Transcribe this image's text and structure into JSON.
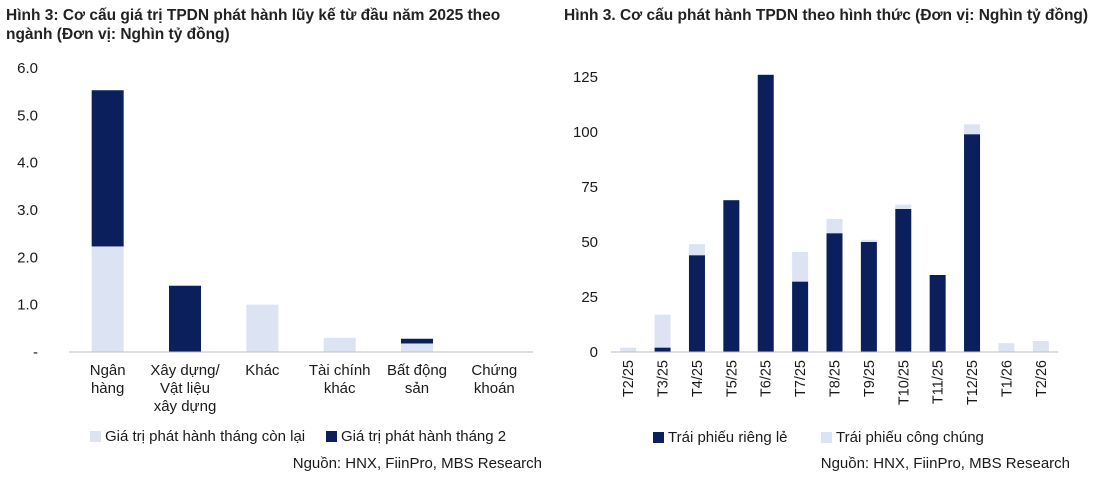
{
  "chart_data": [
    {
      "type": "bar",
      "stacked": true,
      "title": "Hình 3: Cơ cấu giá trị TPDN phát hành lũy kế từ đầu năm 2025 theo ngành (Đơn vị: Nghìn tỷ đồng)",
      "categories": [
        [
          "Ngân",
          "hàng"
        ],
        [
          "Xây dựng/",
          "Vật liệu",
          "xây dựng"
        ],
        [
          "Khác"
        ],
        [
          "Tài chính",
          "khác"
        ],
        [
          "Bất động",
          "sản"
        ],
        [
          "Chứng",
          "khoán"
        ]
      ],
      "series": [
        {
          "name": "Giá trị phát hành tháng còn lại",
          "color": "#dce3f3",
          "values": [
            2.23,
            0,
            1.0,
            0.3,
            0.18,
            0
          ]
        },
        {
          "name": "Giá trị phát hành tháng 2",
          "color": "#0b1f5c",
          "values": [
            3.3,
            1.4,
            0,
            0,
            0.1,
            0
          ]
        }
      ],
      "ylim": [
        0,
        6
      ],
      "yticks": [
        {
          "value": 0,
          "label": "-"
        },
        {
          "value": 1,
          "label": "1.0"
        },
        {
          "value": 2,
          "label": "2.0"
        },
        {
          "value": 3,
          "label": "3.0"
        },
        {
          "value": 4,
          "label": "4.0"
        },
        {
          "value": 5,
          "label": "5.0"
        },
        {
          "value": 6,
          "label": "6.0"
        }
      ],
      "legend": "bottom",
      "source": "Nguồn: HNX, FiinPro, MBS Research"
    },
    {
      "type": "bar",
      "stacked": true,
      "title": "Hình 3. Cơ cấu phát hành TPDN theo hình thức (Đơn vị: Nghìn tỷ đồng)",
      "categories": [
        "T2/25",
        "T3/25",
        "T4/25",
        "T5/25",
        "T6/25",
        "T7/25",
        "T8/25",
        "T9/25",
        "T10/25",
        "T11/25",
        "T12/25",
        "T1/26",
        "T2/26"
      ],
      "series": [
        {
          "name": "Trái phiếu riêng lẻ",
          "color": "#0b1f5c",
          "values": [
            0,
            2,
            44,
            69,
            126,
            32,
            54,
            50,
            65,
            35,
            99,
            0,
            0
          ]
        },
        {
          "name": "Trái phiếu công chúng",
          "color": "#dce3f3",
          "values": [
            2,
            15,
            5,
            0,
            0,
            13.5,
            6.5,
            1,
            2,
            0,
            4.5,
            4,
            5
          ]
        }
      ],
      "ylim": [
        0,
        125
      ],
      "yticks": [
        {
          "value": 0,
          "label": "0"
        },
        {
          "value": 25,
          "label": "25"
        },
        {
          "value": 50,
          "label": "50"
        },
        {
          "value": 75,
          "label": "75"
        },
        {
          "value": 100,
          "label": "100"
        },
        {
          "value": 125,
          "label": "125"
        }
      ],
      "legend": "bottom",
      "source": "Nguồn: HNX, FiinPro, MBS Research"
    }
  ]
}
